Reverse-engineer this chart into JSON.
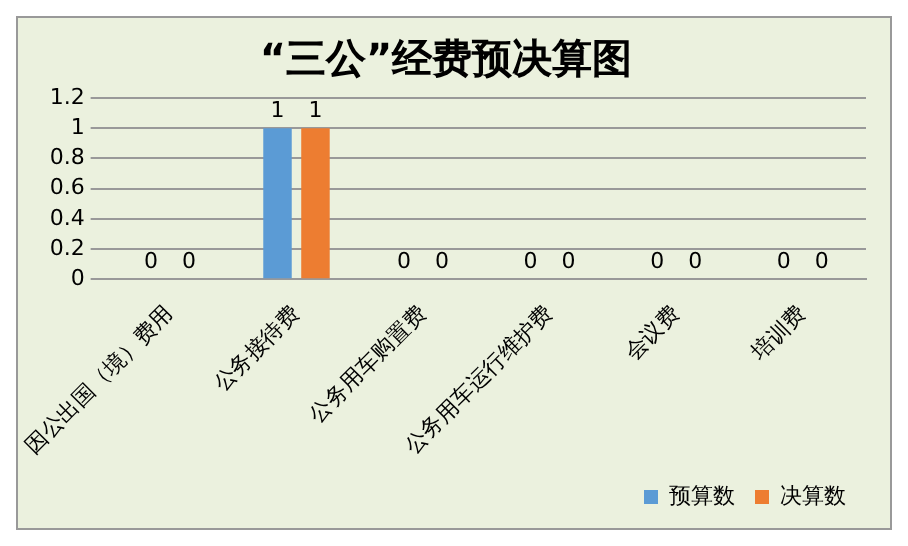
{
  "chart_data": {
    "type": "bar",
    "title": "“三公”经费预决算图",
    "categories": [
      "因公出国（境）费用",
      "公务接待费",
      "公务用车购置费",
      "公务用车运行维护费",
      "会议费",
      "培训费"
    ],
    "series": [
      {
        "name": "预算数",
        "color": "#5b9bd5",
        "values": [
          0,
          1,
          0,
          0,
          0,
          0
        ]
      },
      {
        "name": "决算数",
        "color": "#ed7d31",
        "values": [
          0,
          1,
          0,
          0,
          0,
          0
        ]
      }
    ],
    "ylim": [
      0,
      1.2
    ],
    "yticks": [
      0,
      0.2,
      0.4,
      0.6,
      0.8,
      1,
      1.2
    ],
    "grid": "y",
    "legend": "bottom right",
    "data_labels": true
  }
}
